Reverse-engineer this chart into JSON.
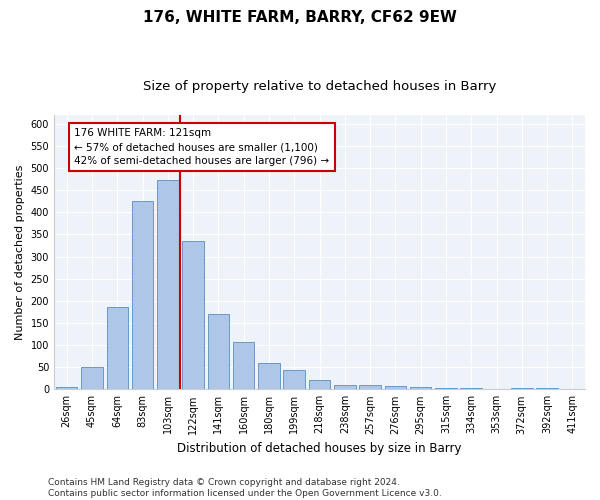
{
  "title": "176, WHITE FARM, BARRY, CF62 9EW",
  "subtitle": "Size of property relative to detached houses in Barry",
  "xlabel": "Distribution of detached houses by size in Barry",
  "ylabel": "Number of detached properties",
  "categories": [
    "26sqm",
    "45sqm",
    "64sqm",
    "83sqm",
    "103sqm",
    "122sqm",
    "141sqm",
    "160sqm",
    "180sqm",
    "199sqm",
    "218sqm",
    "238sqm",
    "257sqm",
    "276sqm",
    "295sqm",
    "315sqm",
    "334sqm",
    "353sqm",
    "372sqm",
    "392sqm",
    "411sqm"
  ],
  "values": [
    5,
    51,
    186,
    425,
    472,
    336,
    170,
    107,
    60,
    43,
    22,
    10,
    10,
    8,
    5,
    3,
    2,
    1,
    2,
    2,
    1
  ],
  "bar_color": "#aec6e8",
  "bar_edge_color": "#5a8fc2",
  "annotation_line1": "176 WHITE FARM: 121sqm",
  "annotation_line2": "← 57% of detached houses are smaller (1,100)",
  "annotation_line3": "42% of semi-detached houses are larger (796) →",
  "annotation_box_color": "#ffffff",
  "annotation_box_edge": "#cc0000",
  "vline_color": "#cc0000",
  "ylim": [
    0,
    620
  ],
  "yticks": [
    0,
    50,
    100,
    150,
    200,
    250,
    300,
    350,
    400,
    450,
    500,
    550,
    600
  ],
  "background_color": "#eef2f9",
  "footer_line1": "Contains HM Land Registry data © Crown copyright and database right 2024.",
  "footer_line2": "Contains public sector information licensed under the Open Government Licence v3.0.",
  "title_fontsize": 11,
  "subtitle_fontsize": 9.5,
  "xlabel_fontsize": 8.5,
  "ylabel_fontsize": 8,
  "tick_fontsize": 7,
  "footer_fontsize": 6.5,
  "annotation_fontsize": 7.5
}
